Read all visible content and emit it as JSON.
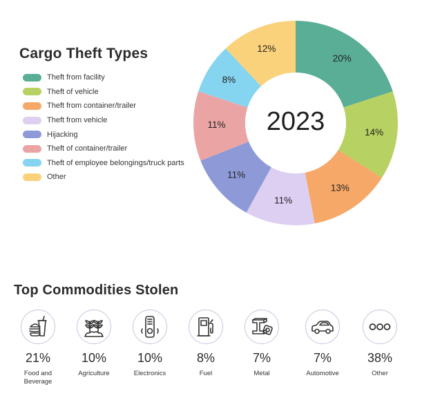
{
  "chart_data": {
    "type": "pie",
    "variant": "donut",
    "title": "Cargo Theft Types",
    "center_label": "2023",
    "legend_position": "left",
    "categories": [
      "Theft from facility",
      "Theft of vehicle",
      "Theft from container/trailer",
      "Theft from vehicle",
      "Hijacking",
      "Theft of container/trailer",
      "Theft of employee belongings/truck parts",
      "Other"
    ],
    "values": [
      20,
      14,
      13,
      11,
      11,
      11,
      8,
      12
    ],
    "value_labels": [
      "20%",
      "14%",
      "13%",
      "11%",
      "11%",
      "11%",
      "8%",
      "12%"
    ],
    "colors": [
      "#5aae96",
      "#b7d162",
      "#f5a868",
      "#dccff2",
      "#8e9ad8",
      "#eba4a4",
      "#85d5f0",
      "#fad27b"
    ]
  },
  "commodities": {
    "title": "Top Commodities Stolen",
    "items": [
      {
        "percent": "21%",
        "name_lines": [
          "Food and",
          "Beverage"
        ],
        "icon": "food-beverage-icon"
      },
      {
        "percent": "10%",
        "name_lines": [
          "Agriculture"
        ],
        "icon": "plants-icon"
      },
      {
        "percent": "10%",
        "name_lines": [
          "Electronics"
        ],
        "icon": "remote-control-icon"
      },
      {
        "percent": "8%",
        "name_lines": [
          "Fuel"
        ],
        "icon": "fuel-pump-icon"
      },
      {
        "percent": "7%",
        "name_lines": [
          "Metal"
        ],
        "icon": "metal-beam-icon"
      },
      {
        "percent": "7%",
        "name_lines": [
          "Automotive"
        ],
        "icon": "car-icon"
      },
      {
        "percent": "38%",
        "name_lines": [
          "Other"
        ],
        "icon": "more-dots-icon"
      }
    ]
  }
}
